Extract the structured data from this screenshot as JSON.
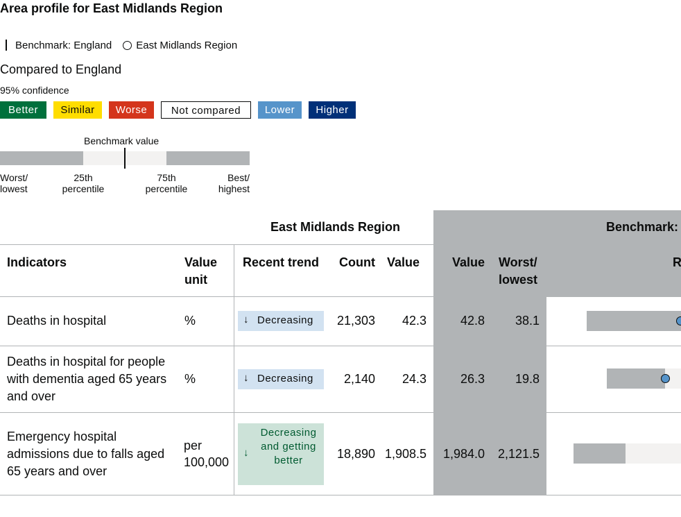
{
  "page": {
    "title": "Area profile for East Midlands Region"
  },
  "legend": {
    "benchmark_label": "Benchmark: England",
    "area_label": "East Midlands Region",
    "compared_heading": "Compared to England",
    "confidence": "95% confidence",
    "tags": [
      {
        "label": "Better",
        "bg": "#00703c",
        "fg": "#ffffff"
      },
      {
        "label": "Similar",
        "bg": "#ffdd00",
        "fg": "#0b0c0c"
      },
      {
        "label": "Worse",
        "bg": "#d4351c",
        "fg": "#ffffff"
      },
      {
        "label": "Not compared",
        "bg": "#ffffff",
        "fg": "#0b0c0c"
      },
      {
        "label": "Lower",
        "bg": "#5694ca",
        "fg": "#ffffff"
      },
      {
        "label": "Higher",
        "bg": "#003078",
        "fg": "#ffffff"
      }
    ],
    "scale": {
      "benchmark_value_label": "Benchmark value",
      "worst_line1": "Worst/",
      "worst_line2": "lowest",
      "p25_line1": "25th",
      "p25_line2": "percentile",
      "p75_line1": "75th",
      "p75_line2": "percentile",
      "best_line1": "Best/",
      "best_line2": "highest"
    }
  },
  "table": {
    "group_area": "East Midlands Region",
    "group_benchmark": "Benchmark: E",
    "headers": {
      "indicators": "Indicators",
      "value_unit": "Value unit",
      "recent_trend": "Recent trend",
      "count": "Count",
      "value": "Value",
      "bm_value": "Value",
      "worst_lowest": "Worst/ lowest",
      "range": "R"
    },
    "rows": [
      {
        "indicator": [
          "Deaths in hospital"
        ],
        "unit": [
          "%"
        ],
        "trend": "Decreasing",
        "trend_arrow": "↓",
        "count": "21,303",
        "value": "42.3",
        "bm_value": "42.8",
        "worst": "38.1"
      },
      {
        "indicator": [
          "Deaths in hospital for people",
          "with dementia aged 65 years",
          "and over"
        ],
        "unit": [
          "%"
        ],
        "trend": "Decreasing",
        "trend_arrow": "↓",
        "count": "2,140",
        "value": "24.3",
        "bm_value": "26.3",
        "worst": "19.8"
      },
      {
        "indicator": [
          "Emergency hospital",
          "admissions due to falls aged",
          "65 years and over"
        ],
        "unit": [
          "per",
          "100,000"
        ],
        "trend": "Decreasing and getting better",
        "trend_arrow": "↓",
        "count": "18,890",
        "value": "1,908.5",
        "bm_value": "1,984.0",
        "worst": "2,121.5"
      }
    ]
  }
}
